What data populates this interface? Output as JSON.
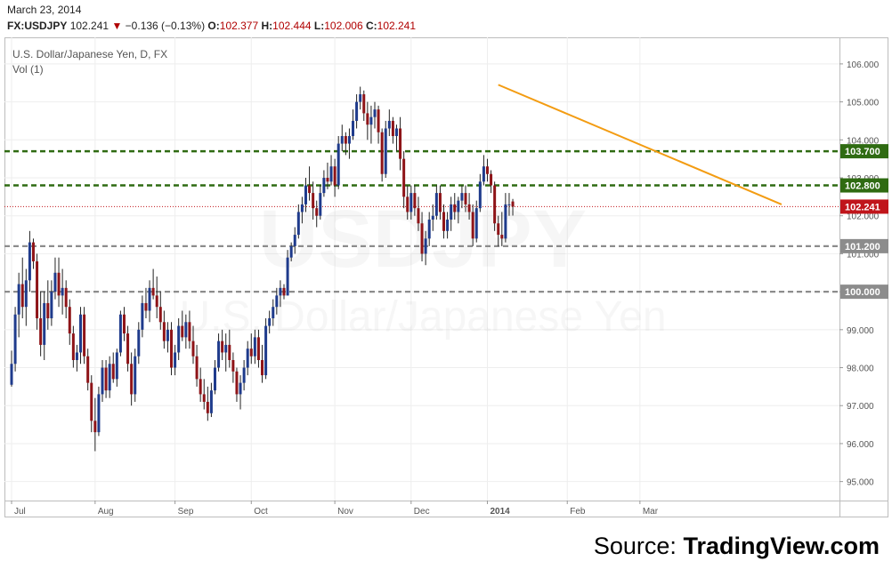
{
  "header": {
    "date": "March 23, 2014",
    "symbol": "FX:USDJPY",
    "last": "102.241",
    "change": "−0.136 (−0.13%)",
    "open_label": "O:",
    "open": "102.377",
    "high_label": "H:",
    "high": "102.444",
    "low_label": "L:",
    "low": "102.006",
    "close_label": "C:",
    "close": "102.241"
  },
  "chart_data": {
    "type": "candlestick",
    "title": "U.S. Dollar/Japanese Yen, D, FX",
    "subtitle": "Vol (1)",
    "watermark_symbol": "USDJPY",
    "watermark_name": "U.S. Dollar/Japanese Yen",
    "ylim": [
      94.5,
      106.7
    ],
    "y_ticks": [
      "95.000",
      "96.000",
      "97.000",
      "98.000",
      "99.000",
      "100.000",
      "101.000",
      "102.000",
      "103.000",
      "104.000",
      "105.000",
      "106.000"
    ],
    "x_ticks": [
      {
        "label": "Jul",
        "x": 0
      },
      {
        "label": "Aug",
        "x": 23
      },
      {
        "label": "Sep",
        "x": 45
      },
      {
        "label": "Oct",
        "x": 66
      },
      {
        "label": "Nov",
        "x": 89
      },
      {
        "label": "Dec",
        "x": 110
      },
      {
        "label": "2014",
        "x": 131
      },
      {
        "label": "Feb",
        "x": 153
      },
      {
        "label": "Mar",
        "x": 173
      }
    ],
    "levels": [
      {
        "value": 103.7,
        "label": "103.700",
        "style": "dashed",
        "color": "#2f6b12"
      },
      {
        "value": 102.8,
        "label": "102.800",
        "style": "dashed",
        "color": "#2f6b12"
      },
      {
        "value": 101.2,
        "label": "101.200",
        "style": "dashed",
        "color": "#8c8c8c"
      },
      {
        "value": 100.0,
        "label": "100.000",
        "style": "dashed",
        "color": "#8c8c8c"
      }
    ],
    "last_price": {
      "value": 102.241,
      "label": "102.241",
      "color": "#c0151b"
    },
    "trendline": {
      "x1": 134,
      "y1": 105.45,
      "x2": 212,
      "y2": 102.3,
      "color": "#f39c12"
    },
    "candles": [
      [
        97.55,
        98.45,
        97.5,
        98.1
      ],
      [
        98.1,
        99.6,
        97.9,
        99.4
      ],
      [
        99.4,
        100.5,
        98.8,
        100.2
      ],
      [
        100.2,
        100.9,
        99.3,
        99.6
      ],
      [
        99.6,
        100.6,
        99.1,
        100.3
      ],
      [
        100.3,
        101.6,
        100.0,
        101.3
      ],
      [
        101.3,
        101.4,
        100.6,
        100.8
      ],
      [
        100.8,
        101.0,
        99.0,
        99.3
      ],
      [
        99.3,
        100.0,
        98.3,
        98.6
      ],
      [
        98.6,
        100.0,
        98.2,
        99.7
      ],
      [
        99.7,
        100.3,
        99.0,
        99.3
      ],
      [
        99.3,
        100.3,
        99.1,
        100.0
      ],
      [
        100.0,
        100.9,
        99.8,
        100.5
      ],
      [
        100.5,
        100.9,
        99.6,
        99.9
      ],
      [
        99.9,
        100.6,
        99.4,
        100.1
      ],
      [
        100.1,
        100.3,
        99.3,
        99.6
      ],
      [
        99.6,
        99.8,
        98.6,
        98.9
      ],
      [
        98.9,
        99.1,
        98.0,
        98.2
      ],
      [
        98.2,
        98.6,
        97.9,
        98.4
      ],
      [
        98.4,
        99.6,
        98.1,
        99.4
      ],
      [
        99.4,
        99.6,
        98.1,
        98.3
      ],
      [
        98.3,
        98.5,
        97.4,
        97.6
      ],
      [
        97.6,
        97.8,
        96.3,
        96.6
      ],
      [
        96.6,
        97.2,
        95.8,
        96.3
      ],
      [
        96.3,
        97.5,
        96.2,
        97.3
      ],
      [
        97.3,
        98.2,
        97.1,
        98.0
      ],
      [
        98.0,
        98.2,
        97.2,
        97.4
      ],
      [
        97.4,
        98.3,
        97.2,
        98.1
      ],
      [
        98.1,
        98.4,
        97.6,
        97.7
      ],
      [
        97.7,
        98.5,
        97.5,
        98.4
      ],
      [
        98.4,
        99.5,
        98.3,
        99.4
      ],
      [
        99.4,
        99.6,
        98.7,
        98.9
      ],
      [
        98.9,
        99.1,
        97.9,
        98.1
      ],
      [
        98.1,
        98.4,
        97.0,
        97.3
      ],
      [
        97.3,
        98.5,
        97.1,
        98.3
      ],
      [
        98.3,
        99.2,
        98.1,
        99.0
      ],
      [
        99.0,
        99.9,
        98.8,
        99.7
      ],
      [
        99.7,
        100.1,
        99.3,
        99.5
      ],
      [
        99.5,
        100.3,
        99.2,
        100.1
      ],
      [
        100.1,
        100.6,
        99.8,
        99.9
      ],
      [
        99.9,
        100.4,
        99.3,
        99.6
      ],
      [
        99.6,
        100.0,
        99.0,
        99.2
      ],
      [
        99.2,
        99.5,
        98.5,
        98.7
      ],
      [
        98.7,
        99.2,
        98.4,
        99.0
      ],
      [
        99.0,
        99.2,
        97.8,
        98.0
      ],
      [
        98.0,
        98.6,
        97.8,
        98.4
      ],
      [
        98.4,
        99.3,
        98.2,
        99.1
      ],
      [
        99.1,
        99.5,
        98.7,
        98.8
      ],
      [
        98.8,
        99.4,
        98.5,
        99.2
      ],
      [
        99.2,
        99.5,
        98.5,
        98.7
      ],
      [
        98.7,
        99.1,
        98.1,
        98.3
      ],
      [
        98.3,
        98.6,
        97.5,
        97.7
      ],
      [
        97.7,
        98.0,
        97.1,
        97.3
      ],
      [
        97.3,
        97.7,
        96.9,
        97.1
      ],
      [
        97.1,
        97.5,
        96.6,
        96.8
      ],
      [
        96.8,
        97.6,
        96.7,
        97.4
      ],
      [
        97.4,
        98.2,
        97.3,
        98.0
      ],
      [
        98.0,
        98.9,
        97.9,
        98.7
      ],
      [
        98.7,
        99.0,
        98.2,
        98.4
      ],
      [
        98.4,
        98.9,
        97.9,
        98.6
      ],
      [
        98.6,
        99.0,
        98.0,
        98.2
      ],
      [
        98.2,
        98.4,
        97.6,
        97.9
      ],
      [
        97.9,
        98.0,
        97.1,
        97.3
      ],
      [
        97.3,
        97.8,
        96.9,
        97.6
      ],
      [
        97.6,
        98.2,
        97.4,
        98.0
      ],
      [
        98.0,
        98.7,
        97.8,
        98.5
      ],
      [
        98.5,
        98.9,
        98.1,
        98.3
      ],
      [
        98.3,
        99.0,
        98.1,
        98.8
      ],
      [
        98.8,
        99.0,
        98.0,
        98.2
      ],
      [
        98.2,
        98.6,
        97.6,
        97.8
      ],
      [
        97.8,
        99.3,
        97.7,
        99.1
      ],
      [
        99.1,
        99.5,
        98.9,
        99.3
      ],
      [
        99.3,
        99.8,
        99.1,
        99.6
      ],
      [
        99.6,
        100.1,
        99.4,
        99.9
      ],
      [
        99.9,
        100.3,
        99.6,
        100.1
      ],
      [
        100.1,
        100.2,
        99.8,
        99.9
      ],
      [
        99.9,
        101.1,
        99.9,
        100.9
      ],
      [
        100.9,
        101.3,
        100.8,
        101.2
      ],
      [
        101.2,
        101.7,
        101.0,
        101.5
      ],
      [
        101.5,
        102.3,
        101.4,
        102.1
      ],
      [
        102.1,
        102.5,
        101.8,
        102.3
      ],
      [
        102.3,
        103.0,
        102.1,
        102.8
      ],
      [
        102.8,
        103.3,
        102.4,
        102.6
      ],
      [
        102.6,
        102.9,
        101.9,
        102.2
      ],
      [
        102.2,
        102.4,
        101.7,
        102.0
      ],
      [
        102.0,
        102.8,
        101.9,
        102.6
      ],
      [
        102.6,
        103.2,
        102.5,
        103.0
      ],
      [
        103.0,
        103.4,
        102.7,
        102.9
      ],
      [
        102.9,
        103.6,
        102.8,
        103.3
      ],
      [
        103.3,
        103.5,
        102.5,
        102.8
      ],
      [
        102.8,
        104.1,
        102.7,
        103.9
      ],
      [
        103.9,
        104.4,
        103.7,
        104.1
      ],
      [
        104.1,
        104.2,
        103.6,
        103.9
      ],
      [
        103.9,
        104.3,
        103.5,
        104.1
      ],
      [
        104.1,
        104.8,
        104.0,
        104.5
      ],
      [
        104.5,
        105.2,
        104.3,
        105.0
      ],
      [
        105.0,
        105.4,
        104.8,
        105.2
      ],
      [
        105.2,
        105.3,
        104.5,
        104.7
      ],
      [
        104.7,
        105.0,
        104.0,
        104.4
      ],
      [
        104.4,
        104.9,
        103.9,
        104.6
      ],
      [
        104.6,
        105.0,
        104.3,
        104.8
      ],
      [
        104.8,
        104.9,
        103.9,
        104.2
      ],
      [
        104.2,
        104.3,
        102.9,
        103.1
      ],
      [
        103.1,
        104.5,
        103.0,
        104.3
      ],
      [
        104.3,
        104.8,
        104.1,
        104.5
      ],
      [
        104.5,
        104.6,
        103.9,
        104.1
      ],
      [
        104.1,
        104.4,
        103.7,
        104.3
      ],
      [
        104.3,
        104.6,
        103.2,
        103.5
      ],
      [
        103.5,
        103.7,
        102.2,
        102.5
      ],
      [
        102.5,
        102.8,
        101.9,
        102.1
      ],
      [
        102.1,
        102.8,
        101.9,
        102.6
      ],
      [
        102.6,
        102.8,
        102.0,
        102.2
      ],
      [
        102.2,
        102.5,
        101.6,
        101.8
      ],
      [
        101.8,
        102.1,
        100.8,
        101.0
      ],
      [
        101.0,
        101.6,
        100.7,
        101.4
      ],
      [
        101.4,
        102.1,
        101.2,
        101.9
      ],
      [
        101.9,
        102.3,
        101.6,
        102.0
      ],
      [
        102.0,
        102.8,
        101.9,
        102.6
      ],
      [
        102.6,
        102.8,
        101.9,
        102.1
      ],
      [
        102.1,
        102.3,
        101.4,
        101.6
      ],
      [
        101.6,
        102.1,
        101.4,
        101.9
      ],
      [
        101.9,
        102.5,
        101.6,
        102.3
      ],
      [
        102.3,
        102.6,
        101.9,
        102.1
      ],
      [
        102.1,
        102.5,
        101.8,
        102.4
      ],
      [
        102.4,
        102.8,
        102.2,
        102.6
      ],
      [
        102.6,
        102.8,
        102.1,
        102.3
      ],
      [
        102.3,
        102.6,
        101.9,
        102.1
      ],
      [
        102.1,
        102.3,
        101.2,
        101.4
      ],
      [
        101.4,
        102.4,
        101.3,
        102.2
      ],
      [
        102.2,
        103.1,
        102.1,
        102.9
      ],
      [
        102.9,
        103.6,
        102.8,
        103.3
      ],
      [
        103.3,
        103.5,
        102.9,
        103.1
      ],
      [
        103.1,
        103.2,
        102.6,
        102.8
      ],
      [
        102.8,
        102.9,
        101.6,
        101.8
      ],
      [
        101.8,
        102.0,
        101.2,
        101.5
      ],
      [
        101.5,
        102.1,
        101.2,
        101.4
      ],
      [
        101.4,
        102.6,
        101.3,
        102.3
      ],
      [
        102.3,
        102.6,
        102.0,
        102.3
      ],
      [
        102.377,
        102.444,
        102.006,
        102.241
      ]
    ]
  },
  "source": {
    "prefix": "Source: ",
    "brand": "TradingView.com"
  }
}
